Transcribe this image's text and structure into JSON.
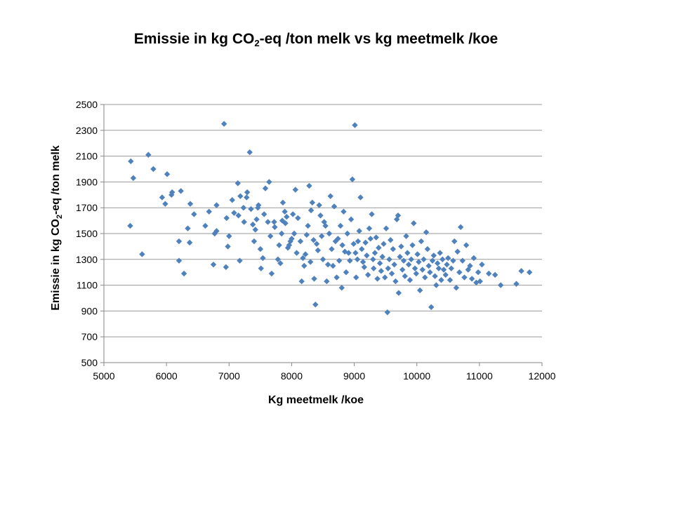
{
  "chart_data": {
    "type": "scatter",
    "title_parts": [
      "Emissie in kg CO",
      "2",
      "-eq /ton melk vs kg meetmelk /koe"
    ],
    "xlabel": "Kg meetmelk /koe",
    "ylabel_parts": [
      "Emissie in kg CO",
      "2",
      "-eq /ton melk"
    ],
    "xlim": [
      5000,
      12000
    ],
    "ylim": [
      500,
      2500
    ],
    "x_ticks": [
      5000,
      6000,
      7000,
      8000,
      9000,
      10000,
      11000,
      12000
    ],
    "y_ticks": [
      500,
      700,
      900,
      1100,
      1300,
      1500,
      1700,
      1900,
      2100,
      2300,
      2500
    ],
    "grid": "horizontal",
    "legend": "none",
    "marker": "diamond",
    "color": "#4f81bd",
    "points": [
      [
        5420,
        1560
      ],
      [
        5430,
        2060
      ],
      [
        5470,
        1930
      ],
      [
        5610,
        1340
      ],
      [
        5710,
        2110
      ],
      [
        5790,
        2000
      ],
      [
        5930,
        1780
      ],
      [
        5980,
        1730
      ],
      [
        6010,
        1960
      ],
      [
        6090,
        1820
      ],
      [
        6080,
        1800
      ],
      [
        6200,
        1440
      ],
      [
        6230,
        1830
      ],
      [
        6280,
        1190
      ],
      [
        6200,
        1290
      ],
      [
        6340,
        1540
      ],
      [
        6370,
        1430
      ],
      [
        6380,
        1730
      ],
      [
        6440,
        1650
      ],
      [
        6620,
        1560
      ],
      [
        6680,
        1670
      ],
      [
        6750,
        1260
      ],
      [
        6770,
        1500
      ],
      [
        6800,
        1520
      ],
      [
        6800,
        1720
      ],
      [
        6920,
        2350
      ],
      [
        6950,
        1240
      ],
      [
        6980,
        1400
      ],
      [
        6960,
        1620
      ],
      [
        7000,
        1480
      ],
      [
        7050,
        1760
      ],
      [
        7080,
        1660
      ],
      [
        7140,
        1890
      ],
      [
        7150,
        1640
      ],
      [
        7180,
        1790
      ],
      [
        7170,
        1290
      ],
      [
        7230,
        1700
      ],
      [
        7240,
        1590
      ],
      [
        7280,
        1780
      ],
      [
        7290,
        1820
      ],
      [
        7330,
        2130
      ],
      [
        7350,
        1690
      ],
      [
        7380,
        1570
      ],
      [
        7400,
        1440
      ],
      [
        7420,
        1530
      ],
      [
        7440,
        1610
      ],
      [
        7460,
        1700
      ],
      [
        7470,
        1720
      ],
      [
        7500,
        1380
      ],
      [
        7510,
        1230
      ],
      [
        7540,
        1310
      ],
      [
        7560,
        1650
      ],
      [
        7580,
        1850
      ],
      [
        7620,
        1590
      ],
      [
        7640,
        1900
      ],
      [
        7660,
        1480
      ],
      [
        7680,
        1190
      ],
      [
        7720,
        1590
      ],
      [
        7730,
        1550
      ],
      [
        7780,
        1300
      ],
      [
        7800,
        1410
      ],
      [
        7820,
        1270
      ],
      [
        7840,
        1500
      ],
      [
        7850,
        1600
      ],
      [
        7860,
        1740
      ],
      [
        7890,
        1670
      ],
      [
        7900,
        1580
      ],
      [
        7920,
        1630
      ],
      [
        7940,
        1390
      ],
      [
        7960,
        1410
      ],
      [
        7980,
        1440
      ],
      [
        8000,
        1460
      ],
      [
        8020,
        1650
      ],
      [
        8040,
        1500
      ],
      [
        8060,
        1840
      ],
      [
        8080,
        1350
      ],
      [
        8100,
        1620
      ],
      [
        8140,
        1440
      ],
      [
        8160,
        1130
      ],
      [
        8180,
        1310
      ],
      [
        8200,
        1250
      ],
      [
        8220,
        1340
      ],
      [
        8240,
        1490
      ],
      [
        8260,
        1560
      ],
      [
        8280,
        1870
      ],
      [
        8300,
        1280
      ],
      [
        8310,
        1680
      ],
      [
        8330,
        1740
      ],
      [
        8350,
        1450
      ],
      [
        8360,
        1150
      ],
      [
        8380,
        950
      ],
      [
        8400,
        1420
      ],
      [
        8420,
        1370
      ],
      [
        8440,
        1720
      ],
      [
        8460,
        1640
      ],
      [
        8480,
        1480
      ],
      [
        8500,
        1300
      ],
      [
        8520,
        1590
      ],
      [
        8540,
        1560
      ],
      [
        8560,
        1130
      ],
      [
        8580,
        1260
      ],
      [
        8600,
        1500
      ],
      [
        8620,
        1790
      ],
      [
        8640,
        1380
      ],
      [
        8660,
        1250
      ],
      [
        8680,
        1710
      ],
      [
        8700,
        1440
      ],
      [
        8720,
        1160
      ],
      [
        8740,
        1460
      ],
      [
        8760,
        1290
      ],
      [
        8780,
        1560
      ],
      [
        8800,
        1080
      ],
      [
        8810,
        1410
      ],
      [
        8830,
        1670
      ],
      [
        8850,
        1360
      ],
      [
        8870,
        1200
      ],
      [
        8890,
        1500
      ],
      [
        8910,
        1350
      ],
      [
        8930,
        1290
      ],
      [
        8950,
        1610
      ],
      [
        8970,
        1920
      ],
      [
        8990,
        1420
      ],
      [
        9010,
        2340
      ],
      [
        9020,
        1350
      ],
      [
        9030,
        1160
      ],
      [
        9050,
        1300
      ],
      [
        9060,
        1440
      ],
      [
        9080,
        1520
      ],
      [
        9100,
        1780
      ],
      [
        9120,
        1380
      ],
      [
        9140,
        1280
      ],
      [
        9160,
        1240
      ],
      [
        9180,
        1430
      ],
      [
        9200,
        1330
      ],
      [
        9220,
        1180
      ],
      [
        9240,
        1540
      ],
      [
        9260,
        1460
      ],
      [
        9280,
        1650
      ],
      [
        9300,
        1300
      ],
      [
        9310,
        1230
      ],
      [
        9330,
        1350
      ],
      [
        9350,
        1470
      ],
      [
        9370,
        1150
      ],
      [
        9390,
        1390
      ],
      [
        9410,
        1270
      ],
      [
        9430,
        1210
      ],
      [
        9450,
        1320
      ],
      [
        9470,
        1420
      ],
      [
        9490,
        1160
      ],
      [
        9510,
        1540
      ],
      [
        9530,
        890
      ],
      [
        9540,
        1230
      ],
      [
        9560,
        1300
      ],
      [
        9580,
        1450
      ],
      [
        9600,
        1190
      ],
      [
        9620,
        1380
      ],
      [
        9640,
        1260
      ],
      [
        9660,
        1130
      ],
      [
        9680,
        1610
      ],
      [
        9700,
        1640
      ],
      [
        9710,
        1040
      ],
      [
        9730,
        1320
      ],
      [
        9750,
        1400
      ],
      [
        9770,
        1220
      ],
      [
        9790,
        1290
      ],
      [
        9810,
        1170
      ],
      [
        9830,
        1480
      ],
      [
        9850,
        1350
      ],
      [
        9870,
        1260
      ],
      [
        9890,
        1140
      ],
      [
        9910,
        1300
      ],
      [
        9930,
        1410
      ],
      [
        9950,
        1580
      ],
      [
        9970,
        1230
      ],
      [
        9990,
        1190
      ],
      [
        10010,
        1340
      ],
      [
        10030,
        1280
      ],
      [
        10050,
        1060
      ],
      [
        10070,
        1440
      ],
      [
        10090,
        1220
      ],
      [
        10110,
        1300
      ],
      [
        10130,
        1160
      ],
      [
        10150,
        1510
      ],
      [
        10170,
        1380
      ],
      [
        10190,
        1250
      ],
      [
        10210,
        1200
      ],
      [
        10230,
        930
      ],
      [
        10250,
        1290
      ],
      [
        10270,
        1330
      ],
      [
        10290,
        1170
      ],
      [
        10310,
        1100
      ],
      [
        10330,
        1270
      ],
      [
        10350,
        1230
      ],
      [
        10370,
        1350
      ],
      [
        10390,
        1140
      ],
      [
        10410,
        1300
      ],
      [
        10430,
        1220
      ],
      [
        10460,
        1180
      ],
      [
        10480,
        1260
      ],
      [
        10500,
        1310
      ],
      [
        10530,
        1140
      ],
      [
        10550,
        1230
      ],
      [
        10580,
        1290
      ],
      [
        10600,
        1440
      ],
      [
        10630,
        1080
      ],
      [
        10650,
        1360
      ],
      [
        10680,
        1200
      ],
      [
        10700,
        1550
      ],
      [
        10730,
        1290
      ],
      [
        10760,
        1160
      ],
      [
        10790,
        1410
      ],
      [
        10820,
        1220
      ],
      [
        10850,
        1250
      ],
      [
        10880,
        1150
      ],
      [
        10910,
        1310
      ],
      [
        10950,
        1120
      ],
      [
        10980,
        1200
      ],
      [
        11010,
        1130
      ],
      [
        11040,
        1260
      ],
      [
        11150,
        1190
      ],
      [
        11250,
        1180
      ],
      [
        11340,
        1100
      ],
      [
        11590,
        1110
      ],
      [
        11670,
        1210
      ],
      [
        11800,
        1200
      ]
    ]
  }
}
